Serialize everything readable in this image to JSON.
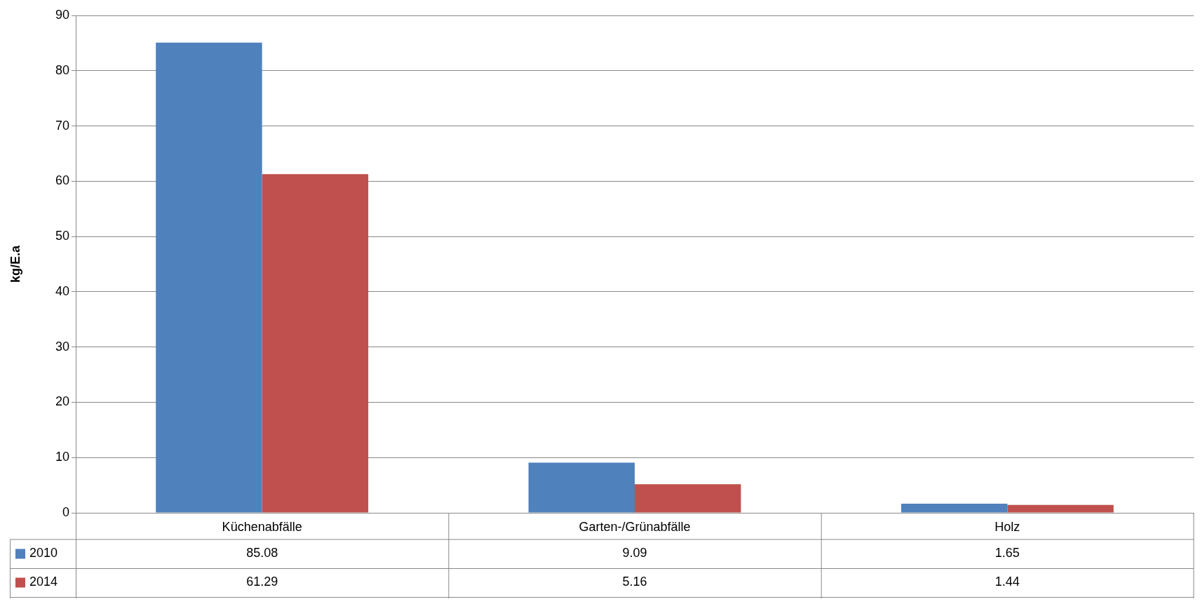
{
  "chart_data": {
    "type": "bar",
    "ylabel": "kg/E.a",
    "categories": [
      "Küchenabfälle",
      "Garten-/Grünabfälle",
      "Holz"
    ],
    "series": [
      {
        "name": "2010",
        "color": "#4f81bd",
        "values": [
          85.08,
          9.09,
          1.65
        ]
      },
      {
        "name": "2014",
        "color": "#c0504d",
        "values": [
          61.29,
          5.16,
          1.44
        ]
      }
    ],
    "ylim": [
      0,
      90
    ],
    "yticks": [
      0,
      10,
      20,
      30,
      40,
      50,
      60,
      70,
      80,
      90
    ],
    "grid": "y",
    "legend": "bottom",
    "data_labels": true
  }
}
